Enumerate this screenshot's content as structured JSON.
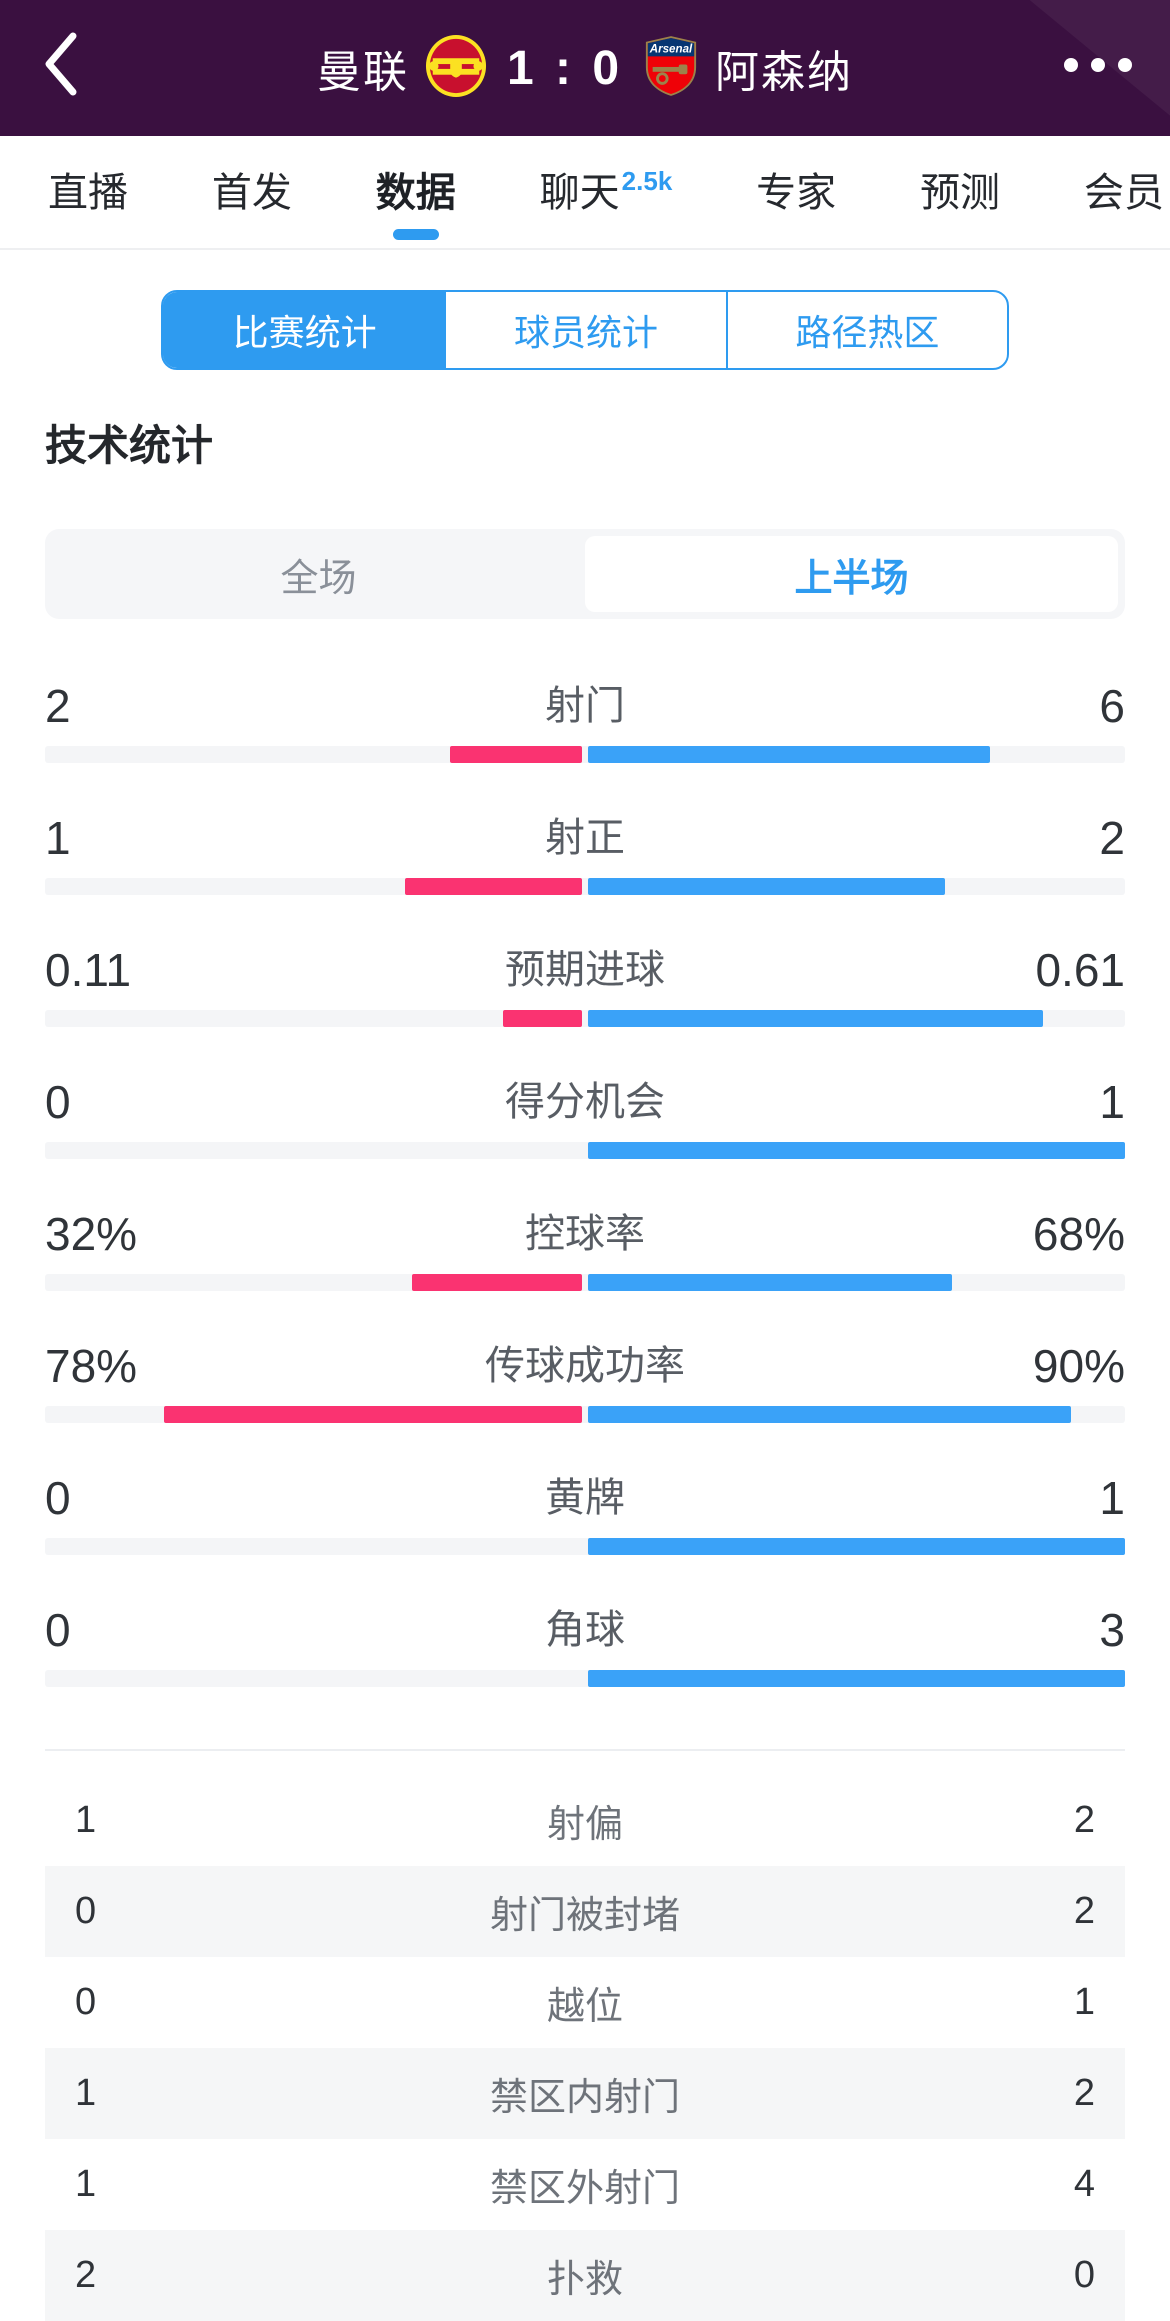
{
  "header": {
    "home_team": "曼联",
    "away_team": "阿森纳",
    "score": "1 : 0"
  },
  "tabs": {
    "active_index": 2,
    "items": [
      {
        "label": "直播",
        "badge": ""
      },
      {
        "label": "首发",
        "badge": ""
      },
      {
        "label": "数据",
        "badge": ""
      },
      {
        "label": "聊天",
        "badge": "2.5k"
      },
      {
        "label": "专家",
        "badge": ""
      },
      {
        "label": "预测",
        "badge": ""
      },
      {
        "label": "会员",
        "badge": ""
      }
    ]
  },
  "segmented": {
    "active_index": 0,
    "items": [
      {
        "label": "比赛统计"
      },
      {
        "label": "球员统计"
      },
      {
        "label": "路径热区"
      }
    ]
  },
  "section_title": "技术统计",
  "period_toggle": {
    "active_index": 1,
    "options": [
      {
        "label": "全场"
      },
      {
        "label": "上半场"
      }
    ]
  },
  "stats": [
    {
      "label": "射门",
      "home": "2",
      "away": "6"
    },
    {
      "label": "射正",
      "home": "1",
      "away": "2"
    },
    {
      "label": "预期进球",
      "home": "0.11",
      "away": "0.61"
    },
    {
      "label": "得分机会",
      "home": "0",
      "away": "1"
    },
    {
      "label": "控球率",
      "home": "32%",
      "away": "68%"
    },
    {
      "label": "传球成功率",
      "home": "78%",
      "away": "90%"
    },
    {
      "label": "黄牌",
      "home": "0",
      "away": "1"
    },
    {
      "label": "角球",
      "home": "0",
      "away": "3"
    }
  ],
  "table": [
    {
      "label": "射偏",
      "home": "1",
      "away": "2"
    },
    {
      "label": "射门被封堵",
      "home": "0",
      "away": "2"
    },
    {
      "label": "越位",
      "home": "0",
      "away": "1"
    },
    {
      "label": "禁区内射门",
      "home": "1",
      "away": "2"
    },
    {
      "label": "禁区外射门",
      "home": "1",
      "away": "4"
    },
    {
      "label": "扑救",
      "home": "2",
      "away": "0"
    }
  ],
  "colors": {
    "accent": "#2E9BF0",
    "home_bar": "#FA3371",
    "away_bar": "#3AA2F8",
    "header_bg": "#3A1040"
  },
  "chart_data": {
    "type": "bar",
    "title": "技术统计 (上半场)",
    "categories": [
      "射门",
      "射正",
      "预期进球",
      "得分机会",
      "控球率",
      "传球成功率",
      "黄牌",
      "角球"
    ],
    "series": [
      {
        "name": "曼联",
        "values": [
          2,
          1,
          0.11,
          0,
          32,
          78,
          0,
          0
        ]
      },
      {
        "name": "阿森纳",
        "values": [
          6,
          2,
          0.61,
          1,
          68,
          90,
          1,
          3
        ]
      }
    ],
    "legend_position": "none",
    "grid": false
  }
}
